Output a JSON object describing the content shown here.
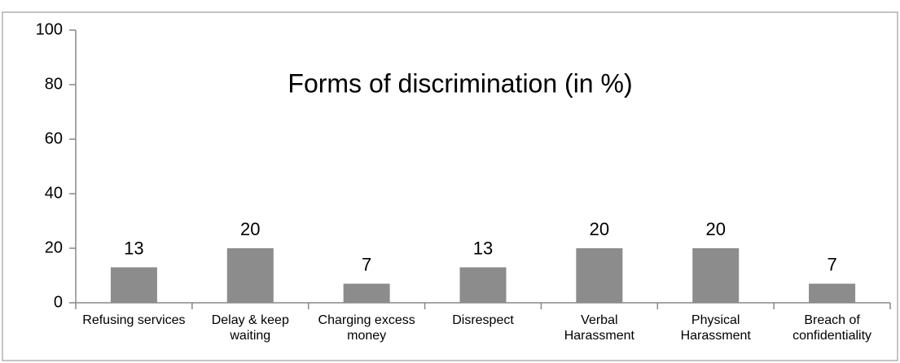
{
  "chart_data": {
    "type": "bar",
    "title": "Forms of discrimination (in %)",
    "categories": [
      "Refusing services",
      "Delay & keep waiting",
      "Charging excess money",
      "Disrespect",
      "Verbal Harassment",
      "Physical Harassment",
      "Breach of confidentiality"
    ],
    "values": [
      13,
      20,
      7,
      13,
      20,
      20,
      7
    ],
    "color": "#8c8c8c",
    "ylim": [
      0,
      100
    ],
    "yticks": [
      0,
      20,
      40,
      60,
      80,
      100
    ],
    "grid": false
  }
}
